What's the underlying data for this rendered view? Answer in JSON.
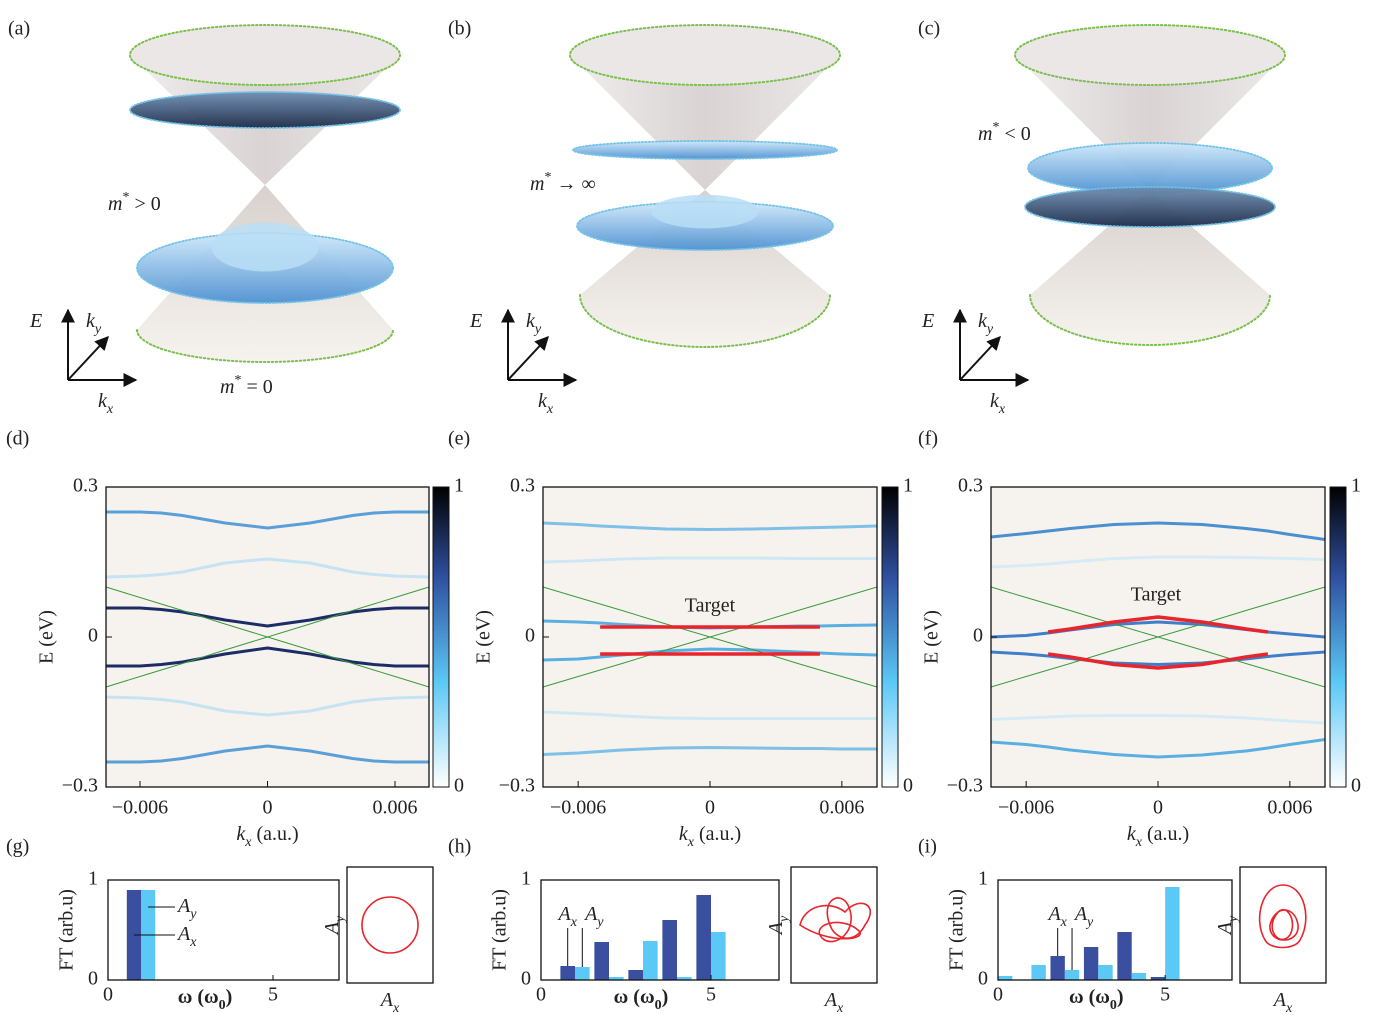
{
  "cone_panels": [
    {
      "label": "(a)",
      "axes": [
        "E",
        "ky",
        "kx"
      ],
      "annotations": [
        "m* > 0",
        "m* = 0"
      ]
    },
    {
      "label": "(b)",
      "axes": [
        "E",
        "ky",
        "kx"
      ],
      "annotations": [
        "m* → ∞"
      ]
    },
    {
      "label": "(c)",
      "axes": [
        "E",
        "ky",
        "kx"
      ],
      "annotations": [
        "m* < 0"
      ]
    }
  ],
  "chart_data": [
    {
      "type": "line",
      "panel_label": "(d)",
      "xlabel": "kx (a.u.)",
      "ylabel": "E (eV)",
      "x": [
        -0.0076,
        -0.006,
        -0.005,
        -0.004,
        -0.002,
        0,
        0.002,
        0.004,
        0.005,
        0.006,
        0.0076
      ],
      "xlim": [
        -0.0076,
        0.0076
      ],
      "xticks": [
        {
          "value": -0.006,
          "label": "−0.006"
        },
        0,
        0.006
      ],
      "ylim": [
        -0.3,
        0.3
      ],
      "yticks": [
        {
          "value": -0.3,
          "label": "−0.3"
        },
        0,
        0.3
      ],
      "colorbar_lim": [
        0,
        1
      ],
      "colorbar_ticks": [
        0,
        1
      ],
      "series": [
        {
          "color": "#5a9fd8",
          "width": 3,
          "values": [
            0.25,
            0.25,
            0.248,
            0.243,
            0.228,
            0.218,
            0.228,
            0.243,
            0.248,
            0.25,
            0.25
          ]
        },
        {
          "color": "#c6e3f3",
          "width": 3,
          "values": [
            0.12,
            0.122,
            0.125,
            0.13,
            0.148,
            0.156,
            0.148,
            0.13,
            0.125,
            0.122,
            0.12
          ]
        },
        {
          "color": "#1c2d66",
          "width": 3,
          "values": [
            0.058,
            0.058,
            0.055,
            0.05,
            0.034,
            0.022,
            0.034,
            0.05,
            0.055,
            0.058,
            0.058
          ]
        },
        {
          "color": "#1c2d66",
          "width": 3,
          "values": [
            -0.058,
            -0.058,
            -0.055,
            -0.05,
            -0.034,
            -0.022,
            -0.034,
            -0.05,
            -0.055,
            -0.058,
            -0.058
          ]
        },
        {
          "color": "#c6e3f3",
          "width": 3,
          "values": [
            -0.12,
            -0.122,
            -0.125,
            -0.13,
            -0.148,
            -0.156,
            -0.148,
            -0.13,
            -0.125,
            -0.122,
            -0.12
          ]
        },
        {
          "color": "#5a9fd8",
          "width": 3,
          "values": [
            -0.25,
            -0.25,
            -0.248,
            -0.243,
            -0.228,
            -0.218,
            -0.228,
            -0.243,
            -0.248,
            -0.25,
            -0.25
          ]
        },
        {
          "color": "#3a9a3a",
          "width": 1,
          "values": [
            -0.1,
            -0.079,
            -0.066,
            -0.053,
            -0.026,
            0,
            0.026,
            0.053,
            0.066,
            0.079,
            0.1
          ]
        },
        {
          "color": "#3a9a3a",
          "width": 1,
          "values": [
            0.1,
            0.079,
            0.066,
            0.053,
            0.026,
            0,
            -0.026,
            -0.053,
            -0.066,
            -0.079,
            -0.1
          ]
        }
      ]
    },
    {
      "type": "line",
      "panel_label": "(e)",
      "xlabel": "kx (a.u.)",
      "ylabel": "E (eV)",
      "annotation": "Target",
      "x": [
        -0.0076,
        -0.006,
        -0.005,
        -0.004,
        -0.002,
        0,
        0.002,
        0.004,
        0.005,
        0.006,
        0.0076
      ],
      "xlim": [
        -0.0076,
        0.0076
      ],
      "xticks": [
        {
          "value": -0.006,
          "label": "−0.006"
        },
        0,
        0.006
      ],
      "ylim": [
        -0.3,
        0.3
      ],
      "yticks": [
        {
          "value": -0.3,
          "label": "−0.3"
        },
        0,
        0.3
      ],
      "colorbar_lim": [
        0,
        1
      ],
      "colorbar_ticks": [
        0,
        1
      ],
      "series": [
        {
          "color": "#7ec0e6",
          "width": 3,
          "values": [
            0.228,
            0.225,
            0.222,
            0.22,
            0.216,
            0.215,
            0.216,
            0.218,
            0.219,
            0.22,
            0.222
          ]
        },
        {
          "color": "#cfe7f4",
          "width": 3,
          "values": [
            0.15,
            0.152,
            0.154,
            0.156,
            0.158,
            0.158,
            0.158,
            0.157,
            0.157,
            0.157,
            0.157
          ]
        },
        {
          "color": "#5aaee0",
          "width": 3,
          "values": [
            0.032,
            0.03,
            0.028,
            0.025,
            0.02,
            0.018,
            0.02,
            0.022,
            0.022,
            0.023,
            0.024
          ]
        },
        {
          "color": "#5aaee0",
          "width": 3,
          "values": [
            -0.046,
            -0.044,
            -0.04,
            -0.036,
            -0.028,
            -0.024,
            -0.026,
            -0.03,
            -0.032,
            -0.034,
            -0.036
          ]
        },
        {
          "color": "#d0e8f4",
          "width": 3,
          "values": [
            -0.15,
            -0.153,
            -0.155,
            -0.158,
            -0.162,
            -0.163,
            -0.163,
            -0.163,
            -0.163,
            -0.163,
            -0.163
          ]
        },
        {
          "color": "#7ec0e6",
          "width": 3,
          "values": [
            -0.235,
            -0.232,
            -0.229,
            -0.226,
            -0.222,
            -0.221,
            -0.222,
            -0.223,
            -0.223,
            -0.224,
            -0.224
          ]
        },
        {
          "color": "#3a9a3a",
          "width": 1,
          "values": [
            -0.1,
            -0.079,
            -0.066,
            -0.053,
            -0.026,
            0,
            0.026,
            0.053,
            0.066,
            0.079,
            0.1
          ]
        },
        {
          "color": "#3a9a3a",
          "width": 1,
          "values": [
            0.1,
            0.079,
            0.066,
            0.053,
            0.026,
            0,
            -0.026,
            -0.053,
            -0.066,
            -0.079,
            -0.1
          ]
        },
        {
          "color": "#e8242c",
          "width": 3.5,
          "values": [
            null,
            null,
            0.02,
            0.02,
            0.02,
            0.02,
            0.02,
            0.02,
            0.02,
            null,
            null
          ]
        },
        {
          "color": "#e8242c",
          "width": 3.5,
          "values": [
            null,
            null,
            -0.034,
            -0.034,
            -0.034,
            -0.034,
            -0.034,
            -0.034,
            -0.034,
            null,
            null
          ]
        }
      ]
    },
    {
      "type": "line",
      "panel_label": "(f)",
      "xlabel": "kx (a.u.)",
      "ylabel": "E (eV)",
      "annotation": "Target",
      "x": [
        -0.0076,
        -0.006,
        -0.005,
        -0.004,
        -0.002,
        0,
        0.002,
        0.004,
        0.005,
        0.006,
        0.0076
      ],
      "xlim": [
        -0.0076,
        0.0076
      ],
      "xticks": [
        {
          "value": -0.006,
          "label": "−0.006"
        },
        0,
        0.006
      ],
      "ylim": [
        -0.3,
        0.3
      ],
      "yticks": [
        {
          "value": -0.3,
          "label": "−0.3"
        },
        0,
        0.3
      ],
      "colorbar_lim": [
        0,
        1
      ],
      "colorbar_ticks": [
        0,
        1
      ],
      "series": [
        {
          "color": "#4a8fd0",
          "width": 3,
          "values": [
            0.2,
            0.207,
            0.212,
            0.217,
            0.225,
            0.228,
            0.225,
            0.217,
            0.212,
            0.205,
            0.195
          ]
        },
        {
          "color": "#d5ebf5",
          "width": 3,
          "values": [
            0.14,
            0.143,
            0.146,
            0.15,
            0.157,
            0.16,
            0.16,
            0.159,
            0.158,
            0.157,
            0.155
          ]
        },
        {
          "color": "#3f7fc8",
          "width": 3,
          "values": [
            0.0,
            0.003,
            0.008,
            0.014,
            0.025,
            0.03,
            0.025,
            0.015,
            0.01,
            0.006,
            0.0
          ]
        },
        {
          "color": "#3f7fc8",
          "width": 3,
          "values": [
            -0.03,
            -0.034,
            -0.038,
            -0.043,
            -0.052,
            -0.055,
            -0.052,
            -0.044,
            -0.039,
            -0.035,
            -0.03
          ]
        },
        {
          "color": "#d5ebf5",
          "width": 3,
          "values": [
            -0.165,
            -0.162,
            -0.16,
            -0.158,
            -0.157,
            -0.157,
            -0.158,
            -0.162,
            -0.165,
            -0.168,
            -0.172
          ]
        },
        {
          "color": "#5aaee0",
          "width": 3,
          "values": [
            -0.21,
            -0.215,
            -0.22,
            -0.226,
            -0.235,
            -0.24,
            -0.236,
            -0.228,
            -0.222,
            -0.215,
            -0.205
          ]
        },
        {
          "color": "#3a9a3a",
          "width": 1,
          "values": [
            -0.1,
            -0.079,
            -0.066,
            -0.053,
            -0.026,
            0,
            0.026,
            0.053,
            0.066,
            0.079,
            0.1
          ]
        },
        {
          "color": "#3a9a3a",
          "width": 1,
          "values": [
            0.1,
            0.079,
            0.066,
            0.053,
            0.026,
            0,
            -0.026,
            -0.053,
            -0.066,
            -0.079,
            -0.1
          ]
        },
        {
          "color": "#e8242c",
          "width": 3.5,
          "values": [
            null,
            null,
            0.01,
            0.016,
            0.03,
            0.04,
            0.03,
            0.016,
            0.01,
            null,
            null
          ]
        },
        {
          "color": "#e8242c",
          "width": 3.5,
          "values": [
            null,
            null,
            -0.034,
            -0.04,
            -0.055,
            -0.062,
            -0.055,
            -0.04,
            -0.034,
            null,
            null
          ]
        }
      ]
    },
    {
      "type": "bar",
      "panel_label": "(g)",
      "xlabel": "ω (ω0)",
      "ylabel": "FT (arb.u)",
      "x": [
        1
      ],
      "xlim": [
        0,
        7
      ],
      "xticks": [
        0,
        5
      ],
      "ylim": [
        0,
        1
      ],
      "yticks": [
        0,
        1
      ],
      "series": [
        {
          "name": "Ax",
          "color": "#3a4fa0",
          "values": [
            0.9
          ]
        },
        {
          "name": "Ay",
          "color": "#5bc8f5",
          "values": [
            0.9
          ]
        }
      ],
      "inset": {
        "xlabel": "Ax",
        "ylabel": "Ay"
      }
    },
    {
      "type": "bar",
      "panel_label": "(h)",
      "xlabel": "ω (ω0)",
      "ylabel": "FT (arb.u)",
      "x": [
        1,
        2,
        3,
        4,
        5
      ],
      "xlim": [
        0,
        7
      ],
      "xticks": [
        0,
        5
      ],
      "ylim": [
        0,
        1
      ],
      "yticks": [
        0,
        1
      ],
      "series": [
        {
          "name": "Ax",
          "color": "#3a4fa0",
          "values": [
            0.14,
            0.38,
            0.1,
            0.6,
            0.85
          ]
        },
        {
          "name": "Ay",
          "color": "#5bc8f5",
          "values": [
            0.13,
            0.03,
            0.39,
            0.03,
            0.48
          ]
        }
      ],
      "inset": {
        "xlabel": "Ax",
        "ylabel": "Ay"
      }
    },
    {
      "type": "bar",
      "panel_label": "(i)",
      "xlabel": "ω (ω0)",
      "ylabel": "FT (arb.u)",
      "x": [
        0,
        1,
        2,
        3,
        4,
        5
      ],
      "xlim": [
        0,
        7
      ],
      "xticks": [
        0,
        5
      ],
      "ylim": [
        0,
        1
      ],
      "yticks": [
        0,
        1
      ],
      "series": [
        {
          "name": "Ax",
          "color": "#3a4fa0",
          "values": [
            0,
            0,
            0.24,
            0.33,
            0.48,
            0.03
          ]
        },
        {
          "name": "Ay",
          "color": "#5bc8f5",
          "values": [
            0.04,
            0.15,
            0.1,
            0.15,
            0.07,
            0.93
          ]
        }
      ],
      "inset": {
        "xlabel": "Ax",
        "ylabel": "Ay"
      }
    }
  ]
}
